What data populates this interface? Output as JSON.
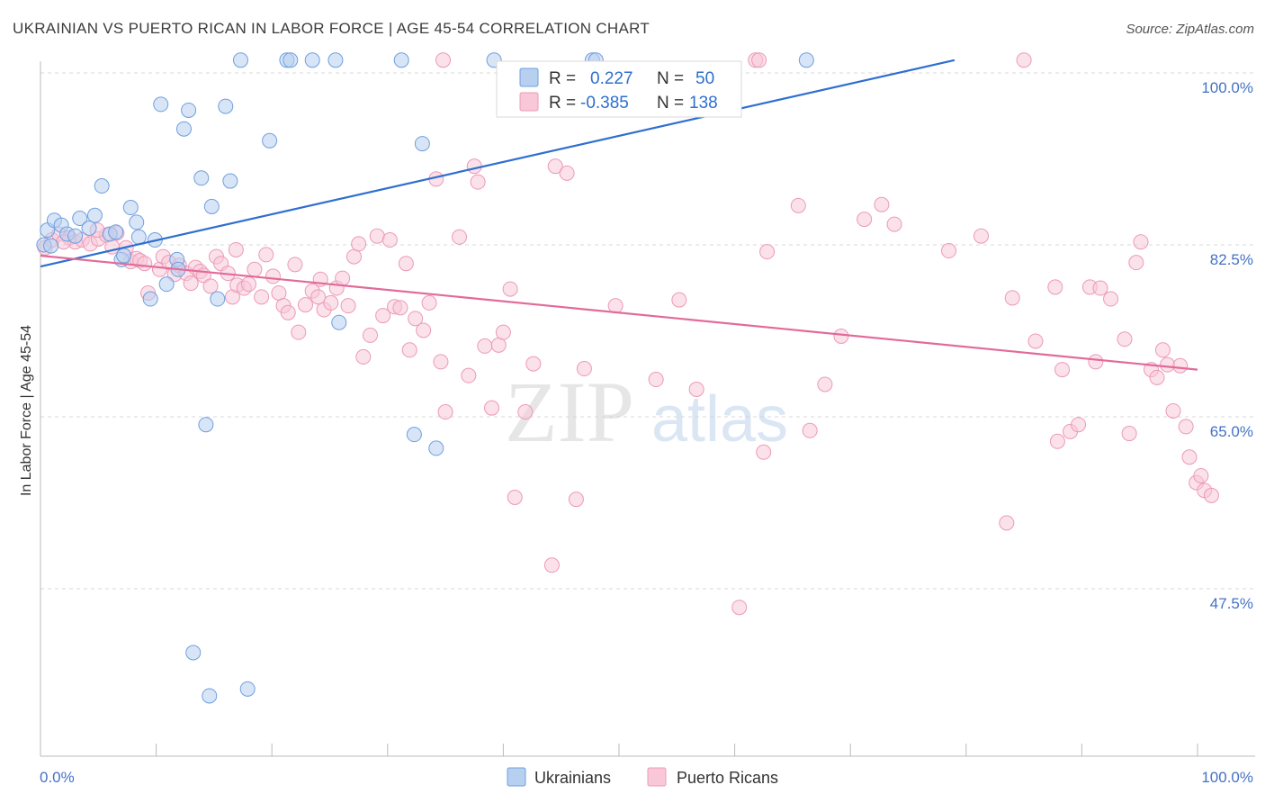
{
  "title": "UKRAINIAN VS PUERTO RICAN IN LABOR FORCE | AGE 45-54 CORRELATION CHART",
  "source": "Source: ZipAtlas.com",
  "watermark": {
    "zip": "ZIP",
    "atlas": "atlas"
  },
  "colors": {
    "blue_fill": "#b8d0f0",
    "blue_stroke": "#6f9fdf",
    "blue_line": "#2e6fd0",
    "pink_fill": "#f8c8d8",
    "pink_stroke": "#ec9ab5",
    "pink_line": "#e26a98",
    "tick_text": "#4472c4",
    "grid": "#d8d8d8"
  },
  "legend": {
    "rows": [
      {
        "r_label": "R =",
        "r_value": "0.227",
        "n_label": "N =",
        "n_value": "50",
        "series": "blue"
      },
      {
        "r_label": "R =",
        "r_value": "-0.385",
        "n_label": "N =",
        "n_value": "138",
        "series": "pink"
      }
    ]
  },
  "chart_data": {
    "type": "scatter",
    "title": "UKRAINIAN VS PUERTO RICAN IN LABOR FORCE | AGE 45-54 CORRELATION CHART",
    "xlabel": "",
    "ylabel": "In Labor Force | Age 45-54",
    "xlim": [
      0,
      100
    ],
    "ylim": [
      31,
      103
    ],
    "x_tick_labels": [
      "0.0%",
      "100.0%"
    ],
    "y_ticks": [
      47.5,
      65.0,
      82.5,
      100.0
    ],
    "y_tick_labels": [
      "47.5%",
      "65.0%",
      "82.5%",
      "100.0%"
    ],
    "grid": true,
    "legend_position": "top-center",
    "series": [
      {
        "name": "Ukrainians",
        "color": "blue",
        "trend": [
          [
            0,
            80.3
          ],
          [
            79,
            101.3
          ]
        ],
        "points": [
          [
            0.3,
            82.5
          ],
          [
            0.6,
            84.0
          ],
          [
            1.2,
            85.0
          ],
          [
            1.8,
            84.5
          ],
          [
            2.3,
            83.6
          ],
          [
            3.0,
            83.4
          ],
          [
            3.4,
            85.2
          ],
          [
            4.2,
            84.2
          ],
          [
            4.7,
            85.5
          ],
          [
            5.3,
            88.5
          ],
          [
            6.0,
            83.6
          ],
          [
            6.5,
            83.8
          ],
          [
            7.0,
            81.0
          ],
          [
            7.2,
            81.4
          ],
          [
            7.8,
            86.3
          ],
          [
            8.3,
            84.8
          ],
          [
            8.5,
            83.3
          ],
          [
            9.5,
            77.0
          ],
          [
            9.9,
            83.0
          ],
          [
            10.4,
            96.8
          ],
          [
            10.9,
            78.5
          ],
          [
            11.8,
            81.0
          ],
          [
            11.9,
            80.0
          ],
          [
            12.4,
            94.3
          ],
          [
            12.8,
            96.2
          ],
          [
            13.9,
            89.3
          ],
          [
            14.3,
            64.2
          ],
          [
            14.8,
            86.4
          ],
          [
            15.3,
            77.0
          ],
          [
            16.0,
            96.6
          ],
          [
            16.4,
            89.0
          ],
          [
            17.3,
            101.3
          ],
          [
            17.9,
            37.3
          ],
          [
            19.8,
            93.1
          ],
          [
            21.3,
            101.3
          ],
          [
            21.6,
            101.3
          ],
          [
            23.5,
            101.3
          ],
          [
            25.5,
            101.3
          ],
          [
            25.8,
            74.6
          ],
          [
            31.2,
            101.3
          ],
          [
            32.3,
            63.2
          ],
          [
            33.0,
            92.8
          ],
          [
            34.2,
            61.8
          ],
          [
            39.2,
            101.3
          ],
          [
            47.7,
            101.3
          ],
          [
            48.0,
            101.3
          ],
          [
            66.2,
            101.3
          ],
          [
            13.2,
            41.0
          ],
          [
            14.6,
            36.6
          ],
          [
            0.9,
            82.4
          ]
        ]
      },
      {
        "name": "Puerto Ricans",
        "color": "pink",
        "trend": [
          [
            0,
            81.4
          ],
          [
            100,
            69.8
          ]
        ],
        "points": [
          [
            0.4,
            82.2
          ],
          [
            1.0,
            83.0
          ],
          [
            1.6,
            83.6
          ],
          [
            2.5,
            83.2
          ],
          [
            3.0,
            82.8
          ],
          [
            3.6,
            83.0
          ],
          [
            4.3,
            82.6
          ],
          [
            5.0,
            83.1
          ],
          [
            5.7,
            83.5
          ],
          [
            6.2,
            82.3
          ],
          [
            7.4,
            82.2
          ],
          [
            7.8,
            80.8
          ],
          [
            8.3,
            81.1
          ],
          [
            8.6,
            80.9
          ],
          [
            9.0,
            80.6
          ],
          [
            9.3,
            77.6
          ],
          [
            10.3,
            80.0
          ],
          [
            10.6,
            81.3
          ],
          [
            11.1,
            80.7
          ],
          [
            11.6,
            79.5
          ],
          [
            12.0,
            80.4
          ],
          [
            12.6,
            79.6
          ],
          [
            13.0,
            78.6
          ],
          [
            13.4,
            80.2
          ],
          [
            13.8,
            79.8
          ],
          [
            14.1,
            79.4
          ],
          [
            14.7,
            78.3
          ],
          [
            15.2,
            81.3
          ],
          [
            15.6,
            80.6
          ],
          [
            16.2,
            79.6
          ],
          [
            16.6,
            77.2
          ],
          [
            17.0,
            78.4
          ],
          [
            17.6,
            78.1
          ],
          [
            18.0,
            78.5
          ],
          [
            18.5,
            80.0
          ],
          [
            19.1,
            77.2
          ],
          [
            19.5,
            81.5
          ],
          [
            20.1,
            79.3
          ],
          [
            20.6,
            77.6
          ],
          [
            21.0,
            76.3
          ],
          [
            22.0,
            80.5
          ],
          [
            22.3,
            73.6
          ],
          [
            22.9,
            76.4
          ],
          [
            23.5,
            77.8
          ],
          [
            24.2,
            79.0
          ],
          [
            24.5,
            75.9
          ],
          [
            25.1,
            76.6
          ],
          [
            25.6,
            78.1
          ],
          [
            26.1,
            79.1
          ],
          [
            26.6,
            76.3
          ],
          [
            27.1,
            81.3
          ],
          [
            27.5,
            82.6
          ],
          [
            27.9,
            71.1
          ],
          [
            28.5,
            73.3
          ],
          [
            29.1,
            83.4
          ],
          [
            29.6,
            75.3
          ],
          [
            30.2,
            83.0
          ],
          [
            30.6,
            76.2
          ],
          [
            31.1,
            76.1
          ],
          [
            31.6,
            80.6
          ],
          [
            31.9,
            71.8
          ],
          [
            32.4,
            75.0
          ],
          [
            33.1,
            73.8
          ],
          [
            33.6,
            76.6
          ],
          [
            34.2,
            89.2
          ],
          [
            34.6,
            70.6
          ],
          [
            35.0,
            65.5
          ],
          [
            36.2,
            83.3
          ],
          [
            37.0,
            69.2
          ],
          [
            37.5,
            90.5
          ],
          [
            37.8,
            88.9
          ],
          [
            38.4,
            72.2
          ],
          [
            39.0,
            65.9
          ],
          [
            39.6,
            72.3
          ],
          [
            40.0,
            73.6
          ],
          [
            40.6,
            78.0
          ],
          [
            41.0,
            56.8
          ],
          [
            41.9,
            65.5
          ],
          [
            42.6,
            70.4
          ],
          [
            44.2,
            49.9
          ],
          [
            44.5,
            90.5
          ],
          [
            45.5,
            89.8
          ],
          [
            46.3,
            56.6
          ],
          [
            47.0,
            69.9
          ],
          [
            49.7,
            76.3
          ],
          [
            53.2,
            68.8
          ],
          [
            55.2,
            76.9
          ],
          [
            56.7,
            67.8
          ],
          [
            60.4,
            45.6
          ],
          [
            62.5,
            61.4
          ],
          [
            62.8,
            81.8
          ],
          [
            65.5,
            86.5
          ],
          [
            66.5,
            63.6
          ],
          [
            67.8,
            68.3
          ],
          [
            69.2,
            73.2
          ],
          [
            71.2,
            85.1
          ],
          [
            72.7,
            86.6
          ],
          [
            73.8,
            84.6
          ],
          [
            78.5,
            81.9
          ],
          [
            81.3,
            83.4
          ],
          [
            83.5,
            54.2
          ],
          [
            84.0,
            77.1
          ],
          [
            85.0,
            101.3
          ],
          [
            86.0,
            72.7
          ],
          [
            87.7,
            78.2
          ],
          [
            87.9,
            62.5
          ],
          [
            88.3,
            69.8
          ],
          [
            89.0,
            63.5
          ],
          [
            89.7,
            64.2
          ],
          [
            90.7,
            78.2
          ],
          [
            91.2,
            70.6
          ],
          [
            91.6,
            78.1
          ],
          [
            92.5,
            77.0
          ],
          [
            93.7,
            72.9
          ],
          [
            94.1,
            63.3
          ],
          [
            94.7,
            80.7
          ],
          [
            95.1,
            82.8
          ],
          [
            96.0,
            69.8
          ],
          [
            96.5,
            69.0
          ],
          [
            97.0,
            71.8
          ],
          [
            97.4,
            70.3
          ],
          [
            97.9,
            65.6
          ],
          [
            98.5,
            70.2
          ],
          [
            99.0,
            64.0
          ],
          [
            99.3,
            60.9
          ],
          [
            99.9,
            58.3
          ],
          [
            100.3,
            59.0
          ],
          [
            100.6,
            57.5
          ],
          [
            101.2,
            57.0
          ],
          [
            61.8,
            101.3
          ],
          [
            6.6,
            83.7
          ],
          [
            4.9,
            84.0
          ],
          [
            16.9,
            82.0
          ],
          [
            21.4,
            75.6
          ],
          [
            34.8,
            101.3
          ],
          [
            62.1,
            101.3
          ],
          [
            2.0,
            82.8
          ],
          [
            24.0,
            77.2
          ]
        ]
      }
    ]
  },
  "bottom_legend": [
    {
      "label": "Ukrainians",
      "series": "blue"
    },
    {
      "label": "Puerto Ricans",
      "series": "pink"
    }
  ]
}
